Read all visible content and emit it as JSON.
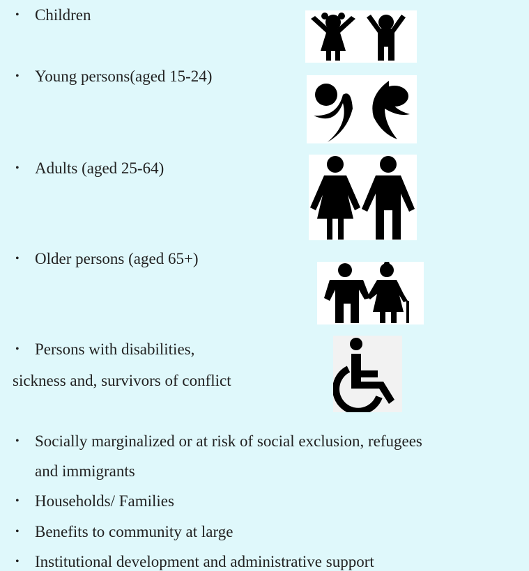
{
  "list": {
    "items": [
      {
        "lines": [
          "Children"
        ]
      },
      {
        "lines": [
          "Young persons(aged 15-24)"
        ]
      },
      {
        "lines": [
          "Adults (aged 25-64)"
        ]
      },
      {
        "lines": [
          "Older persons (aged 65+)"
        ]
      },
      {
        "lines": [
          "Persons with disabilities,",
          "sickness and, survivors of conflict"
        ]
      },
      {
        "lines": [
          "Socially marginalized or at risk of social exclusion, refugees",
          "and immigrants"
        ]
      },
      {
        "lines": [
          "Households/ Families"
        ]
      },
      {
        "lines": [
          "Benefits to community at large"
        ]
      },
      {
        "lines": [
          "Institutional development and administrative support"
        ]
      }
    ]
  }
}
